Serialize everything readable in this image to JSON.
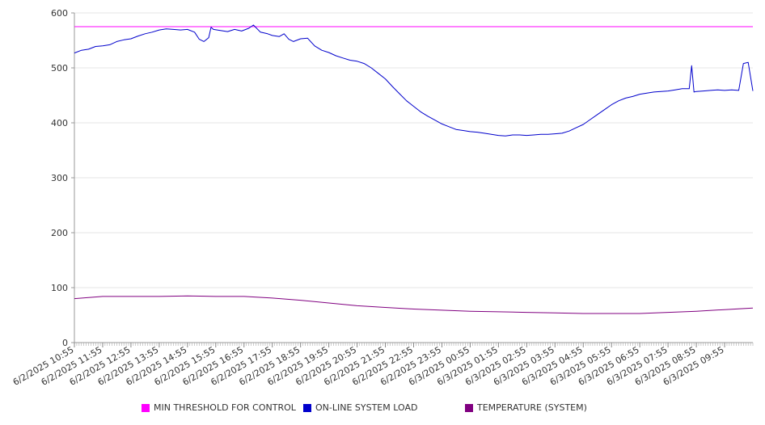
{
  "chart_data": {
    "type": "line",
    "title": "",
    "xlabel": "",
    "ylabel": "",
    "ylim": [
      0,
      600
    ],
    "yticks": [
      0,
      100,
      200,
      300,
      400,
      500,
      600
    ],
    "xlim": [
      "6/2/2025 10:55",
      "6/3/2025 10:55"
    ],
    "xtick_labels": [
      "6/2/2025 10:55",
      "6/2/2025 11:55",
      "6/2/2025 12:55",
      "6/2/2025 13:55",
      "6/2/2025 14:55",
      "6/2/2025 15:55",
      "6/2/2025 16:55",
      "6/2/2025 17:55",
      "6/2/2025 18:55",
      "6/2/2025 19:55",
      "6/2/2025 20:55",
      "6/2/2025 21:55",
      "6/2/2025 22:55",
      "6/2/2025 23:55",
      "6/3/2025 00:55",
      "6/3/2025 01:55",
      "6/3/2025 02:55",
      "6/3/2025 03:55",
      "6/3/2025 04:55",
      "6/3/2025 05:55",
      "6/3/2025 06:55",
      "6/3/2025 07:55",
      "6/3/2025 08:55",
      "6/3/2025 09:55"
    ],
    "grid": true,
    "legend_position": "bottom",
    "series": [
      {
        "name": "MIN THRESHOLD FOR CONTROL",
        "color": "#ff00ff",
        "x": [
          "6/2/2025 10:55",
          "6/3/2025 10:55"
        ],
        "y": [
          575,
          575
        ]
      },
      {
        "name": "ON-LINE SYSTEM LOAD",
        "color": "#0000cc",
        "x": [
          "6/2/2025 10:55",
          "6/2/2025 11:10",
          "6/2/2025 11:25",
          "6/2/2025 11:40",
          "6/2/2025 11:55",
          "6/2/2025 12:10",
          "6/2/2025 12:25",
          "6/2/2025 12:40",
          "6/2/2025 12:55",
          "6/2/2025 13:10",
          "6/2/2025 13:25",
          "6/2/2025 13:40",
          "6/2/2025 13:55",
          "6/2/2025 14:10",
          "6/2/2025 14:25",
          "6/2/2025 14:40",
          "6/2/2025 14:55",
          "6/2/2025 15:10",
          "6/2/2025 15:20",
          "6/2/2025 15:30",
          "6/2/2025 15:40",
          "6/2/2025 15:45",
          "6/2/2025 15:50",
          "6/2/2025 16:05",
          "6/2/2025 16:20",
          "6/2/2025 16:35",
          "6/2/2025 16:50",
          "6/2/2025 17:05",
          "6/2/2025 17:15",
          "6/2/2025 17:30",
          "6/2/2025 17:45",
          "6/2/2025 17:55",
          "6/2/2025 18:10",
          "6/2/2025 18:20",
          "6/2/2025 18:30",
          "6/2/2025 18:40",
          "6/2/2025 18:55",
          "6/2/2025 19:10",
          "6/2/2025 19:25",
          "6/2/2025 19:40",
          "6/2/2025 19:55",
          "6/2/2025 20:10",
          "6/2/2025 20:25",
          "6/2/2025 20:40",
          "6/2/2025 20:55",
          "6/2/2025 21:10",
          "6/2/2025 21:25",
          "6/2/2025 21:40",
          "6/2/2025 21:55",
          "6/2/2025 22:10",
          "6/2/2025 22:25",
          "6/2/2025 22:40",
          "6/2/2025 22:55",
          "6/2/2025 23:10",
          "6/2/2025 23:25",
          "6/2/2025 23:40",
          "6/2/2025 23:55",
          "6/3/2025 00:10",
          "6/3/2025 00:25",
          "6/3/2025 00:40",
          "6/3/2025 00:55",
          "6/3/2025 01:10",
          "6/3/2025 01:25",
          "6/3/2025 01:40",
          "6/3/2025 01:55",
          "6/3/2025 02:10",
          "6/3/2025 02:25",
          "6/3/2025 02:40",
          "6/3/2025 02:55",
          "6/3/2025 03:10",
          "6/3/2025 03:25",
          "6/3/2025 03:40",
          "6/3/2025 03:55",
          "6/3/2025 04:10",
          "6/3/2025 04:25",
          "6/3/2025 04:40",
          "6/3/2025 04:55",
          "6/3/2025 05:10",
          "6/3/2025 05:25",
          "6/3/2025 05:40",
          "6/3/2025 05:55",
          "6/3/2025 06:10",
          "6/3/2025 06:25",
          "6/3/2025 06:40",
          "6/3/2025 06:55",
          "6/3/2025 07:10",
          "6/3/2025 07:25",
          "6/3/2025 07:40",
          "6/3/2025 07:55",
          "6/3/2025 08:10",
          "6/3/2025 08:25",
          "6/3/2025 08:40",
          "6/3/2025 08:45",
          "6/3/2025 08:50",
          "6/3/2025 08:55",
          "6/3/2025 09:10",
          "6/3/2025 09:25",
          "6/3/2025 09:40",
          "6/3/2025 09:55",
          "6/3/2025 10:10",
          "6/3/2025 10:25",
          "6/3/2025 10:35",
          "6/3/2025 10:45",
          "6/3/2025 10:55"
        ],
        "y": [
          527,
          532,
          534,
          539,
          540,
          542,
          548,
          551,
          553,
          558,
          562,
          565,
          569,
          571,
          570,
          569,
          570,
          565,
          552,
          548,
          555,
          574,
          570,
          568,
          566,
          570,
          567,
          572,
          578,
          565,
          562,
          559,
          557,
          562,
          552,
          548,
          553,
          554,
          540,
          532,
          528,
          522,
          518,
          514,
          512,
          508,
          500,
          490,
          480,
          466,
          453,
          440,
          430,
          420,
          412,
          405,
          398,
          393,
          388,
          386,
          384,
          383,
          381,
          379,
          377,
          376,
          378,
          378,
          377,
          378,
          379,
          379,
          380,
          381,
          385,
          391,
          397,
          406,
          415,
          424,
          433,
          440,
          445,
          448,
          452,
          454,
          456,
          457,
          458,
          460,
          462,
          462,
          504,
          456,
          457,
          458,
          459,
          460,
          459,
          460,
          459,
          508,
          510,
          458
        ]
      },
      {
        "name": "TEMPERATURE (SYSTEM)",
        "color": "#800080",
        "x": [
          "6/2/2025 10:55",
          "6/2/2025 11:55",
          "6/2/2025 12:55",
          "6/2/2025 13:55",
          "6/2/2025 14:55",
          "6/2/2025 15:55",
          "6/2/2025 16:55",
          "6/2/2025 17:55",
          "6/2/2025 18:55",
          "6/2/2025 19:55",
          "6/2/2025 20:55",
          "6/2/2025 21:55",
          "6/2/2025 22:55",
          "6/2/2025 23:55",
          "6/3/2025 00:55",
          "6/3/2025 01:55",
          "6/3/2025 02:55",
          "6/3/2025 03:55",
          "6/3/2025 04:55",
          "6/3/2025 05:55",
          "6/3/2025 06:55",
          "6/3/2025 07:55",
          "6/3/2025 08:55",
          "6/3/2025 09:55",
          "6/3/2025 10:55"
        ],
        "y": [
          80,
          84,
          84,
          84,
          85,
          84,
          84,
          81,
          77,
          72,
          67,
          64,
          61,
          59,
          57,
          56,
          55,
          54,
          53,
          53,
          53,
          55,
          57,
          60,
          63
        ]
      }
    ]
  }
}
